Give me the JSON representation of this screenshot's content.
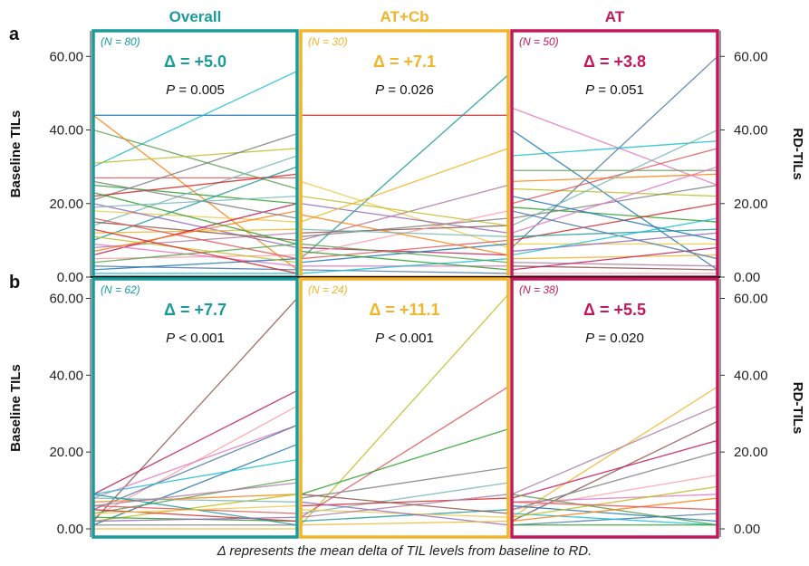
{
  "figure": {
    "caption": "Δ represents the mean delta of TIL levels from baseline to RD.",
    "panel_labels": [
      "a",
      "b"
    ],
    "left_axis_title": "Baseline TILs",
    "right_axis_title": "RD-TILs",
    "column_titles": [
      {
        "text": "Overall",
        "color": "#1a9a9a"
      },
      {
        "text": "AT+Cb",
        "color": "#f0b528"
      },
      {
        "text": "AT",
        "color": "#c2185b"
      }
    ]
  },
  "chart_data": [
    {
      "type": "line",
      "panel": "a",
      "ylim": [
        0,
        65
      ],
      "left_ticks": [
        "0.00",
        "20.00",
        "40.00",
        "60.00"
      ],
      "right_ticks": [
        "0.00",
        "20.00",
        "40.00",
        "60.00"
      ],
      "subplots": [
        {
          "group": "Overall",
          "n_label": "(N = 80)",
          "delta": "Δ = +5.0",
          "p_label": "P",
          "p_value": " = 0.005",
          "series": [
            [
              44,
              44
            ],
            [
              30,
              56
            ],
            [
              40,
              24
            ],
            [
              44,
              2
            ],
            [
              31,
              35
            ],
            [
              27,
              27
            ],
            [
              25,
              20
            ],
            [
              21,
              39
            ],
            [
              14,
              33
            ],
            [
              22,
              28
            ],
            [
              10,
              30
            ],
            [
              18,
              15
            ],
            [
              20,
              8
            ],
            [
              12,
              13
            ],
            [
              8,
              12
            ],
            [
              15,
              10
            ],
            [
              6,
              20
            ],
            [
              5,
              6
            ],
            [
              9,
              3
            ],
            [
              3,
              2
            ],
            [
              2,
              5
            ],
            [
              1,
              1
            ],
            [
              4,
              9
            ],
            [
              7,
              18
            ],
            [
              11,
              4
            ],
            [
              16,
              5
            ],
            [
              23,
              9
            ],
            [
              26,
              16
            ],
            [
              19,
              22
            ],
            [
              13,
              1
            ]
          ]
        },
        {
          "group": "AT+Cb",
          "n_label": "(N = 30)",
          "delta": "Δ = +7.1",
          "p_label": "P",
          "p_value": " = 0.026",
          "series": [
            [
              44,
              44
            ],
            [
              5,
              55
            ],
            [
              26,
              8
            ],
            [
              20,
              12
            ],
            [
              15,
              35
            ],
            [
              10,
              25
            ],
            [
              12,
              14
            ],
            [
              8,
              6
            ],
            [
              6,
              18
            ],
            [
              3,
              3
            ],
            [
              2,
              1
            ],
            [
              4,
              9
            ],
            [
              1,
              5
            ],
            [
              9,
              4
            ],
            [
              17,
              6
            ],
            [
              22,
              14
            ],
            [
              5,
              10
            ],
            [
              7,
              2
            ],
            [
              11,
              16
            ],
            [
              13,
              11
            ]
          ]
        },
        {
          "group": "AT",
          "n_label": "(N = 50)",
          "delta": "Δ = +3.8",
          "p_label": "P",
          "p_value": " = 0.051",
          "series": [
            [
              46,
              25
            ],
            [
              8,
              60
            ],
            [
              40,
              2
            ],
            [
              33,
              37
            ],
            [
              29,
              29
            ],
            [
              26,
              28
            ],
            [
              24,
              22
            ],
            [
              20,
              35
            ],
            [
              19,
              15
            ],
            [
              16,
              25
            ],
            [
              14,
              40
            ],
            [
              10,
              20
            ],
            [
              11,
              13
            ],
            [
              9,
              9
            ],
            [
              7,
              12
            ],
            [
              5,
              6
            ],
            [
              4,
              3
            ],
            [
              3,
              2
            ],
            [
              2,
              8
            ],
            [
              1,
              1
            ],
            [
              12,
              30
            ],
            [
              18,
              5
            ],
            [
              22,
              10
            ],
            [
              6,
              16
            ]
          ]
        }
      ]
    },
    {
      "type": "line",
      "panel": "b",
      "ylim": [
        0,
        62
      ],
      "left_ticks": [
        "0.00",
        "20.00",
        "40.00",
        "60.00"
      ],
      "right_ticks": [
        "0.00",
        "20.00",
        "40.00",
        "60.00"
      ],
      "subplots": [
        {
          "group": "Overall",
          "n_label": "(N = 62)",
          "delta": "Δ = +7.7",
          "p_label": "P",
          "p_value": " < 0.001",
          "series": [
            [
              2,
              60
            ],
            [
              9,
              36
            ],
            [
              3,
              32
            ],
            [
              8,
              27
            ],
            [
              5,
              27
            ],
            [
              1,
              22
            ],
            [
              9,
              18
            ],
            [
              4,
              13
            ],
            [
              7,
              9
            ],
            [
              2,
              9
            ],
            [
              6,
              4
            ],
            [
              3,
              2
            ],
            [
              1,
              1
            ],
            [
              8,
              7
            ],
            [
              5,
              2
            ],
            [
              9,
              1
            ],
            [
              4,
              6
            ],
            [
              2,
              3
            ],
            [
              0,
              0
            ],
            [
              6,
              12
            ]
          ]
        },
        {
          "group": "AT+Cb",
          "n_label": "(N = 24)",
          "delta": "Δ = +11.1",
          "p_label": "P",
          "p_value": " < 0.001",
          "series": [
            [
              1,
              61
            ],
            [
              3,
              37
            ],
            [
              9,
              26
            ],
            [
              8,
              16
            ],
            [
              4,
              12
            ],
            [
              6,
              8
            ],
            [
              2,
              5
            ],
            [
              5,
              3
            ],
            [
              7,
              1
            ],
            [
              1,
              2
            ],
            [
              3,
              9
            ],
            [
              9,
              4
            ]
          ]
        },
        {
          "group": "AT",
          "n_label": "(N = 38)",
          "delta": "Δ = +5.5",
          "p_label": "P",
          "p_value": " = 0.020",
          "series": [
            [
              3,
              37
            ],
            [
              9,
              32
            ],
            [
              2,
              28
            ],
            [
              8,
              23
            ],
            [
              5,
              14
            ],
            [
              7,
              9
            ],
            [
              1,
              4
            ],
            [
              6,
              2
            ],
            [
              4,
              1
            ],
            [
              9,
              1
            ],
            [
              2,
              8
            ],
            [
              3,
              11
            ],
            [
              7,
              5
            ],
            [
              1,
              1
            ],
            [
              5,
              20
            ]
          ]
        }
      ]
    }
  ]
}
